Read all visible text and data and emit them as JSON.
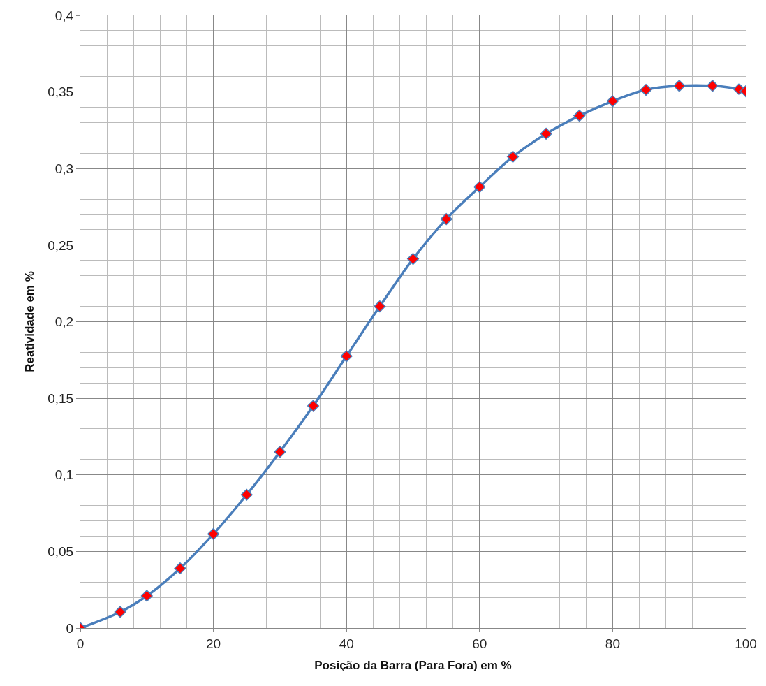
{
  "chart_data": {
    "type": "line",
    "xlabel": "Posição da Barra (Para Fora) em %",
    "ylabel": "Reatividade em %",
    "x": [
      0,
      6,
      10,
      15,
      20,
      25,
      30,
      35,
      40,
      45,
      50,
      55,
      60,
      65,
      70,
      75,
      80,
      85,
      90,
      95,
      99,
      100
    ],
    "series": [
      {
        "color": "#4a7ebb",
        "colors": [
          "#ff0000",
          "#ff0000",
          "#ff0000",
          "#ff0000",
          "#ff0000",
          "#ff0000",
          "#ff0000",
          "#ff0000",
          "#ff0000",
          "#ff0000",
          "#ff0000",
          "#ff0000",
          "#ff0000",
          "#ff0000",
          "#ff0000",
          "#ff0000",
          "#ff0000",
          "#ff0000",
          "#ff0000",
          "#ff0000",
          "#ff0000",
          "#ff0000"
        ],
        "values": [
          0,
          0.0105,
          0.021,
          0.039,
          0.0614,
          0.087,
          0.115,
          0.145,
          0.1775,
          0.21,
          0.241,
          0.267,
          0.288,
          0.3077,
          0.3227,
          0.3345,
          0.344,
          0.3514,
          0.354,
          0.354,
          0.3518,
          0.3505
        ]
      }
    ],
    "xlim": [
      0,
      100
    ],
    "xticks": [
      0,
      20,
      40,
      60,
      80,
      100
    ],
    "ylim": [
      0,
      0.4
    ],
    "yticks": [
      0,
      {
        "value": 0.05,
        "label": "0,05"
      },
      {
        "value": 0.1,
        "label": "0,1"
      },
      {
        "value": 0.15,
        "label": "0,15"
      },
      {
        "value": 0.2,
        "label": "0,2"
      },
      {
        "value": 0.25,
        "label": "0,25"
      },
      {
        "value": 0.3,
        "label": "0,3"
      },
      {
        "value": 0.35,
        "label": "0,35"
      },
      {
        "value": 0.4,
        "label": "0,4"
      }
    ],
    "grid": true,
    "marker": "diamond",
    "line_style": "solid"
  }
}
